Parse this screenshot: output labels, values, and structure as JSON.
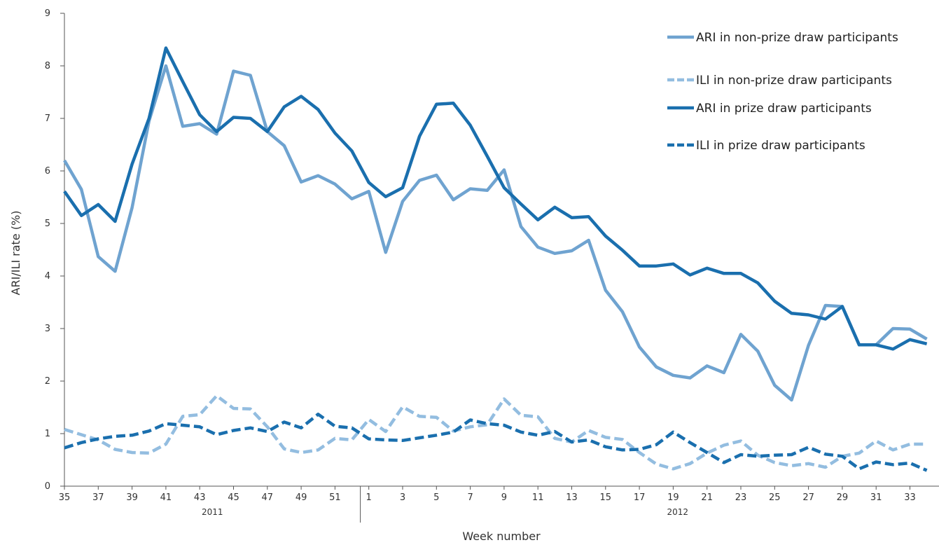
{
  "chart_data": {
    "type": "line",
    "title": "",
    "xlabel": "Week number",
    "ylabel": "ARI/ILI rate (%)",
    "ylim": [
      0,
      9
    ],
    "yticks": [
      0,
      1,
      2,
      3,
      4,
      5,
      6,
      7,
      8,
      9
    ],
    "grid": false,
    "legend": "top-right",
    "x_weeks": [
      35,
      36,
      37,
      38,
      39,
      40,
      41,
      42,
      43,
      44,
      45,
      46,
      47,
      48,
      49,
      50,
      51,
      52,
      1,
      2,
      3,
      4,
      5,
      6,
      7,
      8,
      9,
      10,
      11,
      12,
      13,
      14,
      15,
      16,
      17,
      18,
      19,
      20,
      21,
      22,
      23,
      24,
      25,
      26,
      27,
      28,
      29,
      30,
      31,
      32,
      33,
      34
    ],
    "x_tick_labels": [
      "35",
      "37",
      "39",
      "41",
      "43",
      "45",
      "47",
      "49",
      "51",
      "1",
      "3",
      "5",
      "7",
      "9",
      "11",
      "13",
      "15",
      "17",
      "19",
      "21",
      "23",
      "25",
      "27",
      "29",
      "31",
      "33"
    ],
    "year_groups": [
      {
        "label": "2011",
        "weeks": "35-52"
      },
      {
        "label": "2012",
        "weeks": "1-34"
      }
    ],
    "series": [
      {
        "name": "ARI in non-prize draw participants",
        "color": "#6fa3d0",
        "style": "solid",
        "values": [
          6.2,
          5.65,
          4.37,
          4.09,
          5.3,
          6.95,
          8.0,
          6.85,
          6.9,
          6.7,
          7.9,
          7.82,
          6.75,
          6.48,
          5.79,
          5.91,
          5.75,
          5.47,
          5.61,
          4.45,
          5.42,
          5.82,
          5.92,
          5.45,
          5.66,
          5.63,
          6.02,
          4.94,
          4.55,
          4.43,
          4.48,
          4.68,
          3.73,
          3.32,
          2.65,
          2.27,
          2.11,
          2.06,
          2.29,
          2.16,
          2.89,
          2.57,
          1.92,
          1.64,
          2.68,
          3.44,
          3.42,
          2.69,
          2.69,
          3.0,
          2.99,
          2.8
        ]
      },
      {
        "name": "ILI in non-prize draw participants",
        "color": "#93bde0",
        "style": "dashed",
        "values": [
          1.08,
          0.98,
          0.88,
          0.7,
          0.64,
          0.63,
          0.8,
          1.33,
          1.36,
          1.72,
          1.48,
          1.47,
          1.13,
          0.71,
          0.64,
          0.69,
          0.91,
          0.88,
          1.27,
          1.04,
          1.51,
          1.33,
          1.31,
          1.05,
          1.13,
          1.17,
          1.66,
          1.35,
          1.32,
          0.91,
          0.84,
          1.06,
          0.93,
          0.89,
          0.64,
          0.42,
          0.33,
          0.43,
          0.63,
          0.78,
          0.86,
          0.59,
          0.45,
          0.39,
          0.43,
          0.36,
          0.57,
          0.63,
          0.86,
          0.69,
          0.8,
          0.8
        ]
      },
      {
        "name": "ARI in prize draw participants",
        "color": "#1a6fae",
        "style": "solid",
        "values": [
          5.61,
          5.15,
          5.36,
          5.04,
          6.13,
          7.0,
          8.34,
          7.7,
          7.07,
          6.75,
          7.02,
          7.0,
          6.75,
          7.22,
          7.42,
          7.17,
          6.72,
          6.38,
          5.78,
          5.51,
          5.68,
          6.66,
          7.27,
          7.29,
          6.87,
          6.28,
          5.68,
          5.37,
          5.07,
          5.31,
          5.11,
          5.13,
          4.76,
          4.49,
          4.19,
          4.19,
          4.23,
          4.02,
          4.15,
          4.05,
          4.05,
          3.87,
          3.52,
          3.29,
          3.26,
          3.18,
          3.42,
          2.69,
          2.69,
          2.61,
          2.79,
          2.71
        ]
      },
      {
        "name": "ILI in prize draw participants",
        "color": "#1a6fae",
        "style": "dashed",
        "values": [
          0.73,
          0.83,
          0.9,
          0.95,
          0.97,
          1.05,
          1.19,
          1.16,
          1.13,
          0.98,
          1.06,
          1.11,
          1.04,
          1.22,
          1.11,
          1.37,
          1.14,
          1.11,
          0.9,
          0.88,
          0.87,
          0.92,
          0.97,
          1.03,
          1.26,
          1.19,
          1.16,
          1.03,
          0.97,
          1.04,
          0.84,
          0.88,
          0.75,
          0.69,
          0.7,
          0.79,
          1.03,
          0.83,
          0.64,
          0.45,
          0.6,
          0.57,
          0.59,
          0.6,
          0.74,
          0.61,
          0.57,
          0.33,
          0.46,
          0.41,
          0.44,
          0.3
        ]
      }
    ]
  }
}
